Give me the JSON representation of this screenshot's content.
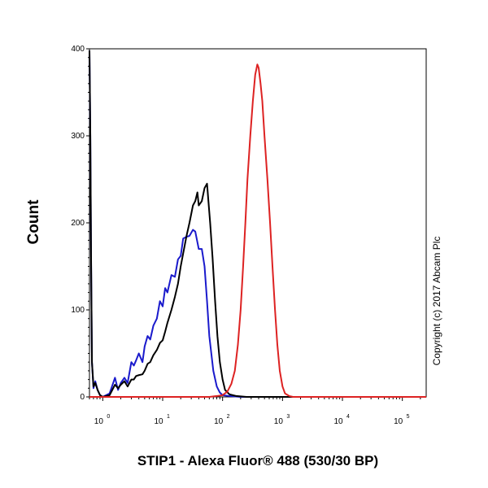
{
  "chart_data": {
    "type": "line",
    "title": "",
    "xlabel": "STIP1 - Alexa Fluor® 488 (530/30 BP)",
    "ylabel": "Count",
    "x_scale": "log",
    "xlim": [
      0.6,
      250000
    ],
    "ylim": [
      0,
      400
    ],
    "x_ticks": [
      {
        "value": 1,
        "base": "10",
        "exp": "0"
      },
      {
        "value": 10,
        "base": "10",
        "exp": "1"
      },
      {
        "value": 100,
        "base": "10",
        "exp": "2"
      },
      {
        "value": 1000,
        "base": "10",
        "exp": "3"
      },
      {
        "value": 10000,
        "base": "10",
        "exp": "4"
      },
      {
        "value": 100000,
        "base": "10",
        "exp": "5"
      }
    ],
    "y_ticks": [
      0,
      100,
      200,
      300,
      400
    ],
    "grid": false,
    "annotations": [
      "Copyright (c) 2017 Abcam Plc"
    ],
    "series": [
      {
        "color": "#1a1acc",
        "points": [
          [
            0.6,
            398
          ],
          [
            0.62,
            300
          ],
          [
            0.64,
            150
          ],
          [
            0.66,
            40
          ],
          [
            0.7,
            10
          ],
          [
            0.75,
            18
          ],
          [
            0.82,
            8
          ],
          [
            0.9,
            2
          ],
          [
            1.0,
            0
          ],
          [
            1.3,
            4
          ],
          [
            1.6,
            22
          ],
          [
            1.8,
            8
          ],
          [
            2.0,
            16
          ],
          [
            2.3,
            22
          ],
          [
            2.6,
            16
          ],
          [
            3.0,
            40
          ],
          [
            3.3,
            36
          ],
          [
            3.6,
            42
          ],
          [
            4.0,
            50
          ],
          [
            4.6,
            40
          ],
          [
            5.0,
            58
          ],
          [
            5.6,
            70
          ],
          [
            6.2,
            66
          ],
          [
            7.0,
            82
          ],
          [
            8.0,
            90
          ],
          [
            9.0,
            110
          ],
          [
            10.0,
            104
          ],
          [
            11.0,
            125
          ],
          [
            12.0,
            120
          ],
          [
            14.0,
            140
          ],
          [
            16.0,
            138
          ],
          [
            18.0,
            158
          ],
          [
            20.0,
            162
          ],
          [
            22.0,
            182
          ],
          [
            25.0,
            184
          ],
          [
            28.0,
            185
          ],
          [
            32.0,
            192
          ],
          [
            35.0,
            190
          ],
          [
            40.0,
            170
          ],
          [
            45.0,
            170
          ],
          [
            50.0,
            150
          ],
          [
            55.0,
            110
          ],
          [
            60.0,
            70
          ],
          [
            70.0,
            30
          ],
          [
            80.0,
            12
          ],
          [
            90.0,
            5
          ],
          [
            100.0,
            2
          ],
          [
            130.0,
            1
          ],
          [
            200.0,
            0
          ],
          [
            2000.0,
            0
          ],
          [
            250000.0,
            0
          ]
        ]
      },
      {
        "color": "#000000",
        "points": [
          [
            0.6,
            398
          ],
          [
            0.62,
            300
          ],
          [
            0.64,
            150
          ],
          [
            0.66,
            40
          ],
          [
            0.7,
            12
          ],
          [
            0.75,
            16
          ],
          [
            0.82,
            8
          ],
          [
            0.9,
            2
          ],
          [
            1.0,
            0
          ],
          [
            1.3,
            2
          ],
          [
            1.6,
            14
          ],
          [
            1.8,
            10
          ],
          [
            2.0,
            14
          ],
          [
            2.3,
            18
          ],
          [
            2.6,
            12
          ],
          [
            3.0,
            20
          ],
          [
            3.3,
            20
          ],
          [
            3.6,
            24
          ],
          [
            4.0,
            25
          ],
          [
            4.6,
            26
          ],
          [
            5.0,
            30
          ],
          [
            5.6,
            38
          ],
          [
            6.2,
            40
          ],
          [
            7.0,
            48
          ],
          [
            8.0,
            54
          ],
          [
            9.0,
            62
          ],
          [
            10.0,
            65
          ],
          [
            11.0,
            75
          ],
          [
            12.0,
            85
          ],
          [
            14.0,
            100
          ],
          [
            16.0,
            115
          ],
          [
            18.0,
            130
          ],
          [
            20.0,
            150
          ],
          [
            22.0,
            165
          ],
          [
            25.0,
            185
          ],
          [
            28.0,
            200
          ],
          [
            32.0,
            220
          ],
          [
            35.0,
            225
          ],
          [
            38.0,
            235
          ],
          [
            40.0,
            220
          ],
          [
            45.0,
            225
          ],
          [
            50.0,
            240
          ],
          [
            55.0,
            245
          ],
          [
            58.0,
            225
          ],
          [
            62.0,
            200
          ],
          [
            68.0,
            160
          ],
          [
            75.0,
            110
          ],
          [
            82.0,
            70
          ],
          [
            90.0,
            40
          ],
          [
            100.0,
            20
          ],
          [
            110.0,
            8
          ],
          [
            130.0,
            3
          ],
          [
            170.0,
            1
          ],
          [
            250.0,
            0
          ],
          [
            2000.0,
            0
          ],
          [
            250000.0,
            0
          ]
        ]
      },
      {
        "color": "#dd2222",
        "points": [
          [
            0.6,
            0
          ],
          [
            60.0,
            0
          ],
          [
            80.0,
            1
          ],
          [
            100.0,
            2
          ],
          [
            120.0,
            6
          ],
          [
            140.0,
            15
          ],
          [
            160.0,
            30
          ],
          [
            180.0,
            60
          ],
          [
            200.0,
            100
          ],
          [
            220.0,
            150
          ],
          [
            240.0,
            200
          ],
          [
            260.0,
            250
          ],
          [
            290.0,
            300
          ],
          [
            320.0,
            340
          ],
          [
            350.0,
            370
          ],
          [
            380.0,
            382
          ],
          [
            400.0,
            378
          ],
          [
            430.0,
            360
          ],
          [
            460.0,
            340
          ],
          [
            500.0,
            300
          ],
          [
            560.0,
            250
          ],
          [
            620.0,
            200
          ],
          [
            680.0,
            150
          ],
          [
            750.0,
            100
          ],
          [
            820.0,
            60
          ],
          [
            900.0,
            30
          ],
          [
            1000.0,
            12
          ],
          [
            1100.0,
            4
          ],
          [
            1300.0,
            1
          ],
          [
            1500.0,
            0
          ],
          [
            250000.0,
            0
          ]
        ]
      }
    ]
  }
}
